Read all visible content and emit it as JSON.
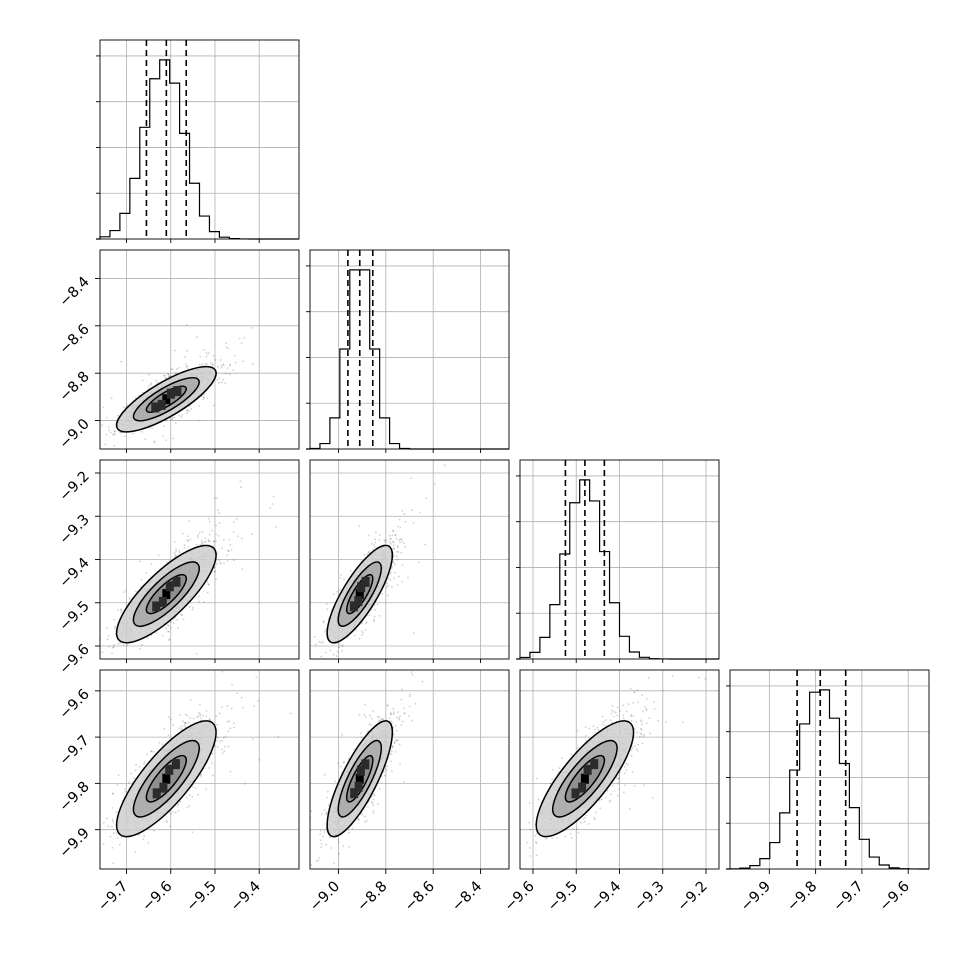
{
  "chart_data": {
    "type": "corner",
    "title": "",
    "parameters": [
      {
        "label": "",
        "range": [
          -9.76,
          -9.31
        ],
        "ticks": [
          "−9.7",
          "−9.6",
          "−9.5",
          "−9.4"
        ],
        "tick_values": [
          -9.7,
          -9.6,
          -9.5,
          -9.4
        ],
        "median": -9.61,
        "q16": -9.655,
        "q84": -9.565,
        "mean": -9.615,
        "sd": 0.045
      },
      {
        "label": "",
        "range": [
          -9.12,
          -8.28
        ],
        "ticks": [
          "−9.0",
          "−8.8",
          "−8.6",
          "−8.4"
        ],
        "tick_values": [
          -9.0,
          -8.8,
          -8.6,
          -8.4
        ],
        "median": -8.91,
        "q16": -8.96,
        "q84": -8.855,
        "mean": -8.91,
        "sd": 0.055
      },
      {
        "label": "",
        "range": [
          -9.63,
          -9.17
        ],
        "ticks": [
          "−9.6",
          "−9.5",
          "−9.4",
          "−9.3",
          "−9.2"
        ],
        "tick_values": [
          -9.6,
          -9.5,
          -9.4,
          -9.3,
          -9.2
        ],
        "median": -9.48,
        "q16": -9.525,
        "q84": -9.435,
        "mean": -9.48,
        "sd": 0.045
      },
      {
        "label": "",
        "range": [
          -9.985,
          -9.555
        ],
        "ticks": [
          "−9.9",
          "−9.8",
          "−9.7",
          "−9.6"
        ],
        "tick_values": [
          -9.9,
          -9.8,
          -9.7,
          -9.6
        ],
        "median": -9.79,
        "q16": -9.84,
        "q84": -9.735,
        "mean": -9.79,
        "sd": 0.05
      }
    ],
    "quantiles": [
      0.16,
      0.5,
      0.84
    ],
    "correlations": {
      "1-0": 0.8,
      "2-0": 0.8,
      "2-1": 0.8,
      "3-0": 0.8,
      "3-1": 0.8,
      "3-2": 0.8
    },
    "histogram_bins": 20,
    "colors": {
      "hist": "#000000",
      "samples": "#000000",
      "contours": "#000000",
      "fill_light": "#cfcfcf",
      "fill_mid": "#8a8a8a",
      "fill_dark": "#2b2b2b",
      "grid": "#b0b0b0"
    },
    "grid": true
  }
}
